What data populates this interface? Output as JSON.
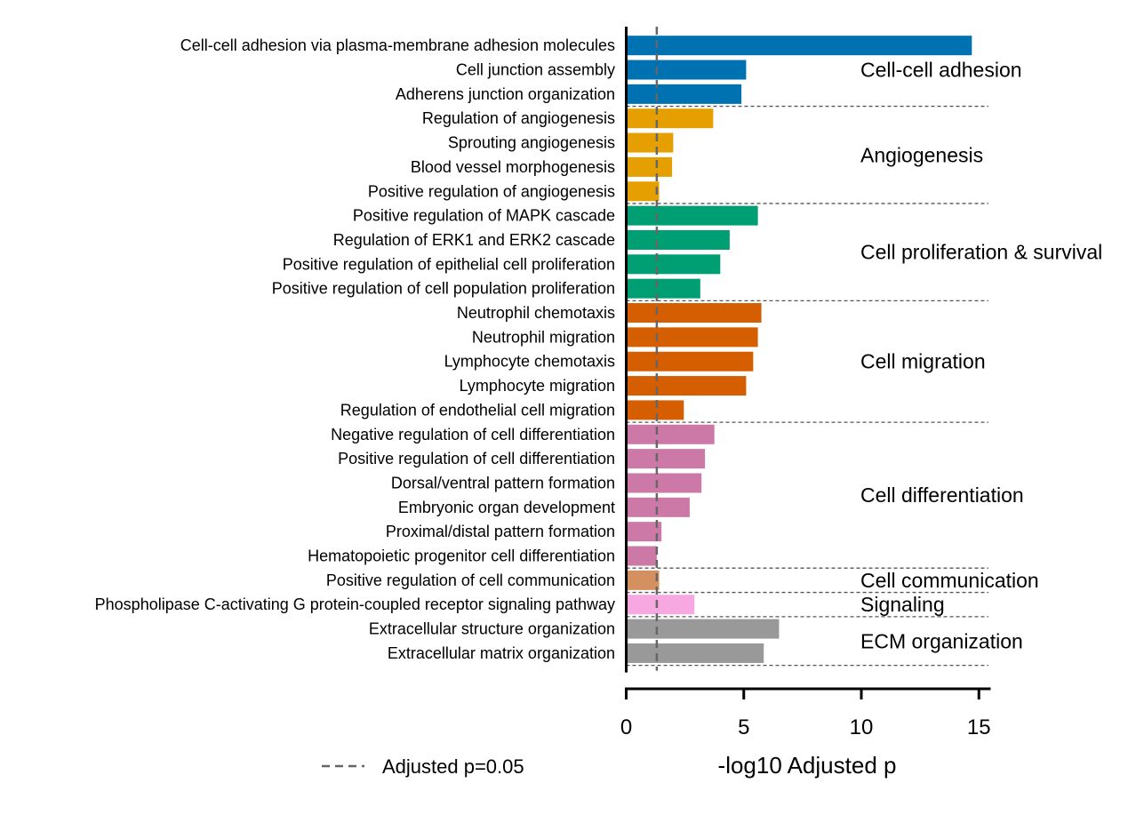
{
  "chart_data": {
    "type": "bar",
    "orientation": "horizontal",
    "xlabel": "-log10 Adjusted p",
    "xlim": [
      0,
      15.5
    ],
    "xticks": [
      0,
      5,
      10,
      15
    ],
    "xtick_labels": [
      "0",
      "5",
      "10",
      "15"
    ],
    "grid": false,
    "threshold": {
      "value": 1.3,
      "label": "Adjusted p=0.05",
      "style": "dashed",
      "color": "#666666"
    },
    "legend_position": "bottom-left",
    "colors": {
      "cell_adhesion": "#0072B2",
      "angiogenesis": "#E69F00",
      "proliferation": "#009E73",
      "migration": "#D55E00",
      "differentiation": "#CC79A7",
      "communication": "#D4915F",
      "signaling": "#F8A8E0",
      "ecm": "#999999"
    },
    "groups": [
      {
        "label": "Cell-cell adhesion",
        "color": "#0072B2",
        "terms": [
          {
            "term": "Cell-cell adhesion via plasma-membrane adhesion molecules",
            "value": 14.7
          },
          {
            "term": "Cell junction assembly",
            "value": 5.1
          },
          {
            "term": "Adherens junction organization",
            "value": 4.9
          }
        ]
      },
      {
        "label": "Angiogenesis",
        "color": "#E69F00",
        "terms": [
          {
            "term": "Regulation of angiogenesis",
            "value": 3.7
          },
          {
            "term": "Sprouting angiogenesis",
            "value": 2.0
          },
          {
            "term": "Blood vessel morphogenesis",
            "value": 1.95
          },
          {
            "term": "Positive regulation of angiogenesis",
            "value": 1.4
          }
        ]
      },
      {
        "label": "Cell proliferation & survival",
        "color": "#009E73",
        "terms": [
          {
            "term": "Positive regulation of MAPK cascade",
            "value": 5.6
          },
          {
            "term": "Regulation of ERK1 and ERK2 cascade",
            "value": 4.4
          },
          {
            "term": "Positive regulation of epithelial cell proliferation",
            "value": 4.0
          },
          {
            "term": "Positive regulation of cell population proliferation",
            "value": 3.15
          }
        ]
      },
      {
        "label": "Cell migration",
        "color": "#D55E00",
        "terms": [
          {
            "term": "Neutrophil chemotaxis",
            "value": 5.75
          },
          {
            "term": "Neutrophil migration",
            "value": 5.6
          },
          {
            "term": "Lymphocyte chemotaxis",
            "value": 5.4
          },
          {
            "term": "Lymphocyte migration",
            "value": 5.1
          },
          {
            "term": "Regulation of endothelial cell migration",
            "value": 2.45
          }
        ]
      },
      {
        "label": "Cell differentiation",
        "color": "#CC79A7",
        "terms": [
          {
            "term": "Negative regulation of cell differentiation",
            "value": 3.75
          },
          {
            "term": "Positive regulation of cell differentiation",
            "value": 3.35
          },
          {
            "term": "Dorsal/ventral pattern formation",
            "value": 3.2
          },
          {
            "term": "Embryonic organ development",
            "value": 2.7
          },
          {
            "term": "Proximal/distal pattern formation",
            "value": 1.5
          },
          {
            "term": "Hematopoietic progenitor cell differentiation",
            "value": 1.3
          }
        ]
      },
      {
        "label": "Cell communication",
        "color": "#D4915F",
        "terms": [
          {
            "term": "Positive regulation of cell communication",
            "value": 1.4
          }
        ]
      },
      {
        "label": "Signaling",
        "color": "#F8A8E0",
        "terms": [
          {
            "term": "Phospholipase C-activating G protein-coupled receptor signaling pathway",
            "value": 2.9
          }
        ]
      },
      {
        "label": "ECM organization",
        "color": "#999999",
        "terms": [
          {
            "term": "Extracellular structure organization",
            "value": 6.5
          },
          {
            "term": "Extracellular matrix organization",
            "value": 5.85
          }
        ]
      }
    ]
  }
}
